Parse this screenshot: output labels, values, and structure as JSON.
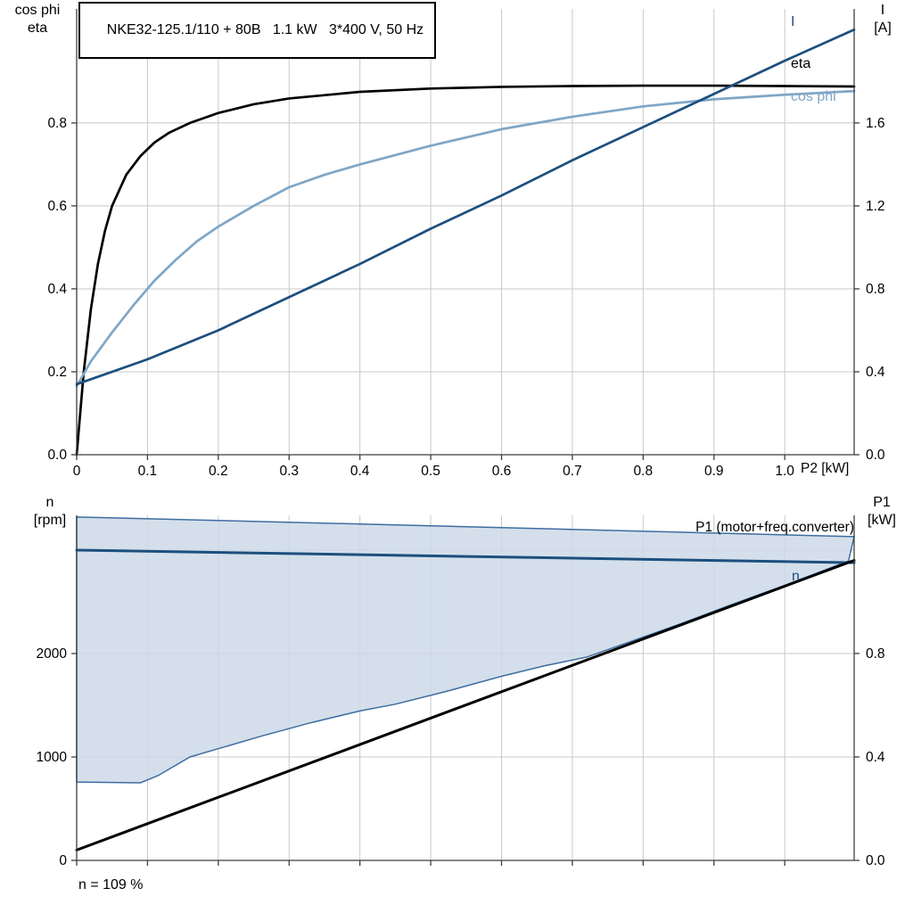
{
  "labels": {
    "top_left_axis": [
      "cos phi",
      "eta"
    ],
    "top_right_axis": [
      "I",
      "[A]"
    ],
    "bottom_left_axis": [
      "n",
      "[rpm]"
    ],
    "bottom_right_axis": [
      "P1",
      "[kW]"
    ]
  },
  "colors": {
    "dark_blue": "#1c4f7e",
    "light_blue": "#7fa6c6",
    "black": "#000000",
    "band_fill": "#cdd9e7",
    "band_stroke": "#3d6da0",
    "grid": "#c8c8c8",
    "axis": "#3f3f3f"
  },
  "chart_data": [
    {
      "id": "top",
      "type": "line",
      "title": "NKE32-125.1/110 + 80B   1.1 kW   3*400 V, 50 Hz",
      "x_axis": {
        "label": "P2 [kW]",
        "min": 0,
        "max": 1.098,
        "grid": [
          0.1,
          0.2,
          0.3,
          0.4,
          0.5,
          0.6,
          0.7,
          0.8,
          0.9,
          1.0
        ],
        "ticks": [
          0,
          0.1,
          0.2,
          0.3,
          0.4,
          0.5,
          0.6,
          0.7,
          0.8,
          0.9,
          1.0
        ],
        "tick_labels": [
          "0",
          "0.1",
          "0.2",
          "0.3",
          "0.4",
          "0.5",
          "0.6",
          "0.7",
          "0.8",
          "0.9",
          "1.0"
        ]
      },
      "y_left": {
        "label": "cos phi / eta",
        "min": 0,
        "max": 1.075,
        "grid": [
          0.2,
          0.4,
          0.6,
          0.8
        ],
        "ticks": [
          0,
          0.2,
          0.4,
          0.6,
          0.8
        ],
        "tick_labels": [
          "0.0",
          "0.2",
          "0.4",
          "0.6",
          "0.8"
        ]
      },
      "y_right": {
        "label": "I [A]",
        "min": 0,
        "max": 2.15,
        "ticks": [
          0,
          0.4,
          0.8,
          1.2,
          1.6
        ],
        "tick_labels": [
          "0.0",
          "0.4",
          "0.8",
          "1.2",
          "1.6"
        ]
      },
      "series": [
        {
          "name": "eta",
          "axis": "left",
          "color": "#000000",
          "width": 2.7,
          "x": [
            0,
            0.005,
            0.01,
            0.02,
            0.03,
            0.04,
            0.05,
            0.07,
            0.09,
            0.11,
            0.13,
            0.16,
            0.2,
            0.25,
            0.3,
            0.4,
            0.5,
            0.6,
            0.7,
            0.8,
            0.9,
            1.0,
            1.098
          ],
          "y": [
            0,
            0.1,
            0.2,
            0.35,
            0.46,
            0.54,
            0.6,
            0.675,
            0.72,
            0.753,
            0.776,
            0.8,
            0.824,
            0.845,
            0.859,
            0.875,
            0.883,
            0.887,
            0.889,
            0.89,
            0.89,
            0.889,
            0.888
          ]
        },
        {
          "name": "cos phi",
          "axis": "left",
          "color": "#7fa6c6",
          "width": 2.7,
          "x": [
            0,
            0.02,
            0.05,
            0.08,
            0.11,
            0.14,
            0.17,
            0.2,
            0.25,
            0.3,
            0.35,
            0.4,
            0.5,
            0.6,
            0.7,
            0.8,
            0.9,
            1.0,
            1.098
          ],
          "y": [
            0.165,
            0.225,
            0.295,
            0.36,
            0.42,
            0.47,
            0.515,
            0.55,
            0.6,
            0.645,
            0.675,
            0.7,
            0.745,
            0.785,
            0.815,
            0.84,
            0.857,
            0.868,
            0.877
          ]
        },
        {
          "name": "I",
          "axis": "right",
          "color": "#1c4f7e",
          "width": 2.7,
          "x": [
            0,
            0.1,
            0.2,
            0.3,
            0.4,
            0.5,
            0.6,
            0.7,
            0.8,
            0.9,
            1.0,
            1.098
          ],
          "y": [
            0.34,
            0.46,
            0.6,
            0.76,
            0.92,
            1.09,
            1.25,
            1.42,
            1.58,
            1.74,
            1.9,
            2.05
          ]
        }
      ]
    },
    {
      "id": "bottom",
      "type": "line",
      "annotation": "n = 109 %",
      "x_axis": {
        "label": "",
        "min": 0,
        "max": 1.098,
        "grid": [
          0.1,
          0.2,
          0.3,
          0.4,
          0.5,
          0.6,
          0.7,
          0.8,
          0.9,
          1.0
        ],
        "ticks": [
          0,
          0.1,
          0.2,
          0.3,
          0.4,
          0.5,
          0.6,
          0.7,
          0.8,
          0.9,
          1.0
        ],
        "tick_labels": []
      },
      "y_left": {
        "label": "n [rpm]",
        "min": 0,
        "max": 3336,
        "grid": [
          1000,
          2000,
          3000
        ],
        "ticks": [
          0,
          1000,
          2000
        ],
        "tick_labels": [
          "0",
          "1000",
          "2000"
        ]
      },
      "y_right": {
        "label": "P1 [kW]",
        "min": 0,
        "max": 1.334,
        "ticks": [
          0,
          0.4,
          0.8
        ],
        "tick_labels": [
          "0.0",
          "0.4",
          "0.8"
        ]
      },
      "band": {
        "name": "speed-control-range",
        "axis": "left",
        "fill": "#cdd9e7",
        "stroke": "#3d6da0",
        "upper": [
          [
            0,
            3320
          ],
          [
            0.5,
            3235
          ],
          [
            1.098,
            3130
          ]
        ],
        "lower": [
          [
            0,
            758
          ],
          [
            0.09,
            750
          ],
          [
            0.115,
            820
          ],
          [
            0.16,
            1000
          ],
          [
            0.2,
            1080
          ],
          [
            0.26,
            1200
          ],
          [
            0.33,
            1330
          ],
          [
            0.4,
            1445
          ],
          [
            0.45,
            1510
          ],
          [
            0.52,
            1630
          ],
          [
            0.6,
            1780
          ],
          [
            0.66,
            1880
          ],
          [
            0.72,
            1965
          ],
          [
            0.78,
            2110
          ],
          [
            0.85,
            2280
          ],
          [
            0.92,
            2460
          ],
          [
            1.0,
            2660
          ],
          [
            1.05,
            2790
          ],
          [
            1.09,
            2895
          ]
        ]
      },
      "series": [
        {
          "name": "n",
          "axis": "left",
          "color": "#1c4f7e",
          "width": 3,
          "x": [
            0,
            1.098
          ],
          "y": [
            3000,
            2878
          ]
        },
        {
          "name": "P1 (motor+freq.converter)",
          "axis": "right",
          "color": "#000000",
          "width": 3,
          "x": [
            0,
            1.098
          ],
          "y": [
            0.04,
            1.16
          ]
        }
      ]
    }
  ]
}
